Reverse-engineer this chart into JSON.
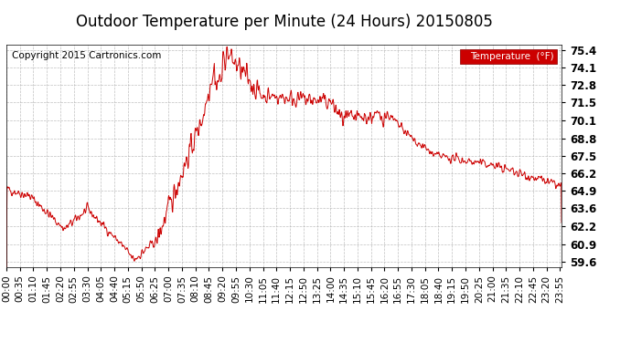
{
  "title": "Outdoor Temperature per Minute (24 Hours) 20150805",
  "copyright": "Copyright 2015 Cartronics.com",
  "legend_label": "Temperature  (°F)",
  "line_color": "#cc0000",
  "legend_bg": "#cc0000",
  "legend_text_color": "#ffffff",
  "bg_color": "#ffffff",
  "plot_bg_color": "#ffffff",
  "grid_color": "#b0b0b0",
  "grid_style": "--",
  "yticks": [
    59.6,
    60.9,
    62.2,
    63.6,
    64.9,
    66.2,
    67.5,
    68.8,
    70.1,
    71.5,
    72.8,
    74.1,
    75.4
  ],
  "ylim": [
    59.2,
    75.8
  ],
  "total_minutes": 1440,
  "xtick_interval": 35,
  "x_labels": [
    "00:00",
    "00:35",
    "01:10",
    "01:45",
    "02:20",
    "02:55",
    "03:30",
    "04:05",
    "04:40",
    "05:15",
    "05:50",
    "06:25",
    "07:00",
    "07:35",
    "08:10",
    "08:45",
    "09:20",
    "09:55",
    "10:30",
    "11:05",
    "11:40",
    "12:15",
    "12:50",
    "13:25",
    "14:00",
    "14:35",
    "15:10",
    "15:45",
    "16:20",
    "16:55",
    "17:30",
    "18:05",
    "18:40",
    "19:15",
    "19:50",
    "20:25",
    "21:00",
    "21:35",
    "22:10",
    "22:45",
    "23:20",
    "23:55"
  ],
  "title_fontsize": 12,
  "axis_fontsize": 7.5,
  "copyright_fontsize": 7.5
}
